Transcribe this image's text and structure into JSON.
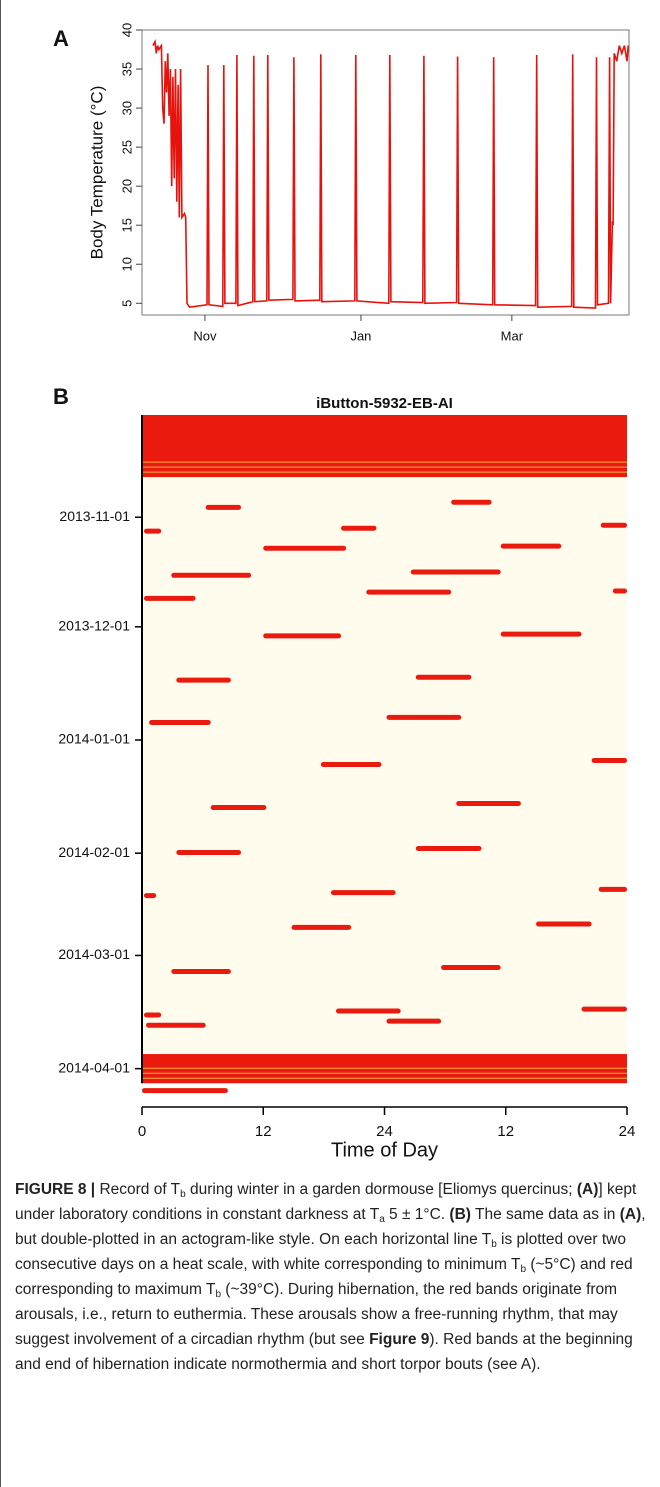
{
  "panel_labels": [
    "A",
    "B"
  ],
  "chart_data": [
    {
      "type": "line",
      "ylabel": "Body Temperature (°C)",
      "color": "#e8120c",
      "xlim": [
        6.4,
        196.8
      ],
      "ylim": [
        3.5,
        40
      ],
      "xticks": [
        {
          "value": 31,
          "label": "Nov"
        },
        {
          "value": 92,
          "label": "Jan"
        },
        {
          "value": 151,
          "label": "Mar"
        }
      ],
      "yticks": [
        5,
        10,
        15,
        20,
        25,
        30,
        35,
        40
      ],
      "x": [
        10.7,
        11.5,
        12,
        12.5,
        13,
        14,
        14.5,
        15,
        15.5,
        16,
        16.5,
        17,
        17.5,
        18,
        18.5,
        19,
        19.5,
        20,
        20.5,
        21,
        21.5,
        22,
        23,
        23.5,
        24,
        25,
        31.8,
        32.2,
        32.6,
        38,
        38.4,
        38.8,
        43.1,
        43.5,
        43.9,
        49.7,
        50.1,
        50.5,
        55.2,
        55.6,
        56,
        65.4,
        65.8,
        66.2,
        75.9,
        76.3,
        76.7,
        89.6,
        90,
        90.4,
        102.9,
        103.3,
        103.7,
        116.2,
        116.6,
        117,
        129.4,
        129.8,
        130.2,
        143.5,
        143.9,
        144.3,
        160.3,
        160.7,
        161.1,
        174.4,
        174.8,
        175.2,
        183.7,
        184.1,
        184.5,
        188.8,
        189.2,
        189.6,
        190.3,
        190.6,
        191,
        192,
        193,
        194,
        195,
        196,
        196.5
      ],
      "values": [
        38,
        38.5,
        37,
        38,
        37.5,
        38,
        30,
        28,
        36,
        32,
        37,
        29,
        35,
        20,
        34,
        21,
        35,
        18,
        33,
        16,
        35,
        16,
        16.5,
        16,
        5,
        4.5,
        4.8,
        35.5,
        4.8,
        4.6,
        35.5,
        5,
        5,
        36.8,
        4.7,
        5.2,
        36.7,
        5.2,
        5.3,
        36.8,
        5.4,
        5.5,
        36.5,
        5.3,
        5.4,
        36.9,
        5.2,
        5.3,
        36.8,
        5.3,
        5,
        36.8,
        5.2,
        5.1,
        36.7,
        5,
        5.1,
        36.6,
        5,
        4.8,
        36.5,
        4.8,
        4.7,
        36.8,
        4.5,
        4.6,
        36.9,
        4.5,
        4.4,
        36.5,
        4.8,
        5,
        36.5,
        5,
        15.5,
        15,
        37,
        36,
        38,
        37,
        38,
        36,
        38
      ]
    },
    {
      "type": "actogram",
      "title": "iButton-5932-EB-AI",
      "xlabel": "Time of Day",
      "color": "#ea1a0e",
      "background": "#fffcee",
      "xlim": [
        0,
        48
      ],
      "ylim": [
        3,
        192.5
      ],
      "xticks": [
        0,
        12,
        24,
        {
          "value": 36,
          "label": "12"
        },
        {
          "value": 48,
          "label": "24"
        }
      ],
      "yticks": [
        {
          "value": 31,
          "label": "2013-11-01"
        },
        {
          "value": 61,
          "label": "2013-12-01"
        },
        {
          "value": 92,
          "label": "2014-01-01"
        },
        {
          "value": 123,
          "label": "2014-02-01"
        },
        {
          "value": 151,
          "label": "2014-03-01"
        },
        {
          "value": 182,
          "label": "2014-04-01"
        }
      ],
      "blocks": [
        {
          "day_from": 3,
          "day_to": 20,
          "start": 0,
          "end": 48
        },
        {
          "day_from": 178,
          "day_to": 186,
          "start": 0,
          "end": 48
        }
      ],
      "bouts": [
        {
          "day": 28.3,
          "start": 6.3,
          "end": 9.8
        },
        {
          "day": 34.8,
          "start": 0.2,
          "end": 1.9
        },
        {
          "day": 26.9,
          "start": 30.6,
          "end": 34.6
        },
        {
          "day": 34,
          "start": 19.7,
          "end": 23.2
        },
        {
          "day": 33.2,
          "start": 45.4,
          "end": 48
        },
        {
          "day": 39.5,
          "start": 12,
          "end": 20.2
        },
        {
          "day": 38.9,
          "start": 35.5,
          "end": 41.5
        },
        {
          "day": 46.9,
          "start": 2.9,
          "end": 10.8
        },
        {
          "day": 46,
          "start": 26.6,
          "end": 35.5
        },
        {
          "day": 53.2,
          "start": 0.2,
          "end": 5.3
        },
        {
          "day": 51.5,
          "start": 22.2,
          "end": 30.6
        },
        {
          "day": 51.2,
          "start": 46.6,
          "end": 48
        },
        {
          "day": 63.5,
          "start": 12,
          "end": 19.7
        },
        {
          "day": 63,
          "start": 35.5,
          "end": 43.5
        },
        {
          "day": 75.6,
          "start": 3.4,
          "end": 8.8
        },
        {
          "day": 74.8,
          "start": 27.1,
          "end": 32.6
        },
        {
          "day": 87.2,
          "start": 0.7,
          "end": 6.8
        },
        {
          "day": 85.8,
          "start": 24.2,
          "end": 31.6
        },
        {
          "day": 98.7,
          "start": 17.7,
          "end": 23.7
        },
        {
          "day": 97.6,
          "start": 44.5,
          "end": 48
        },
        {
          "day": 110.5,
          "start": 6.8,
          "end": 12.3
        },
        {
          "day": 109.4,
          "start": 31.1,
          "end": 37.5
        },
        {
          "day": 122.8,
          "start": 3.4,
          "end": 9.8
        },
        {
          "day": 121.7,
          "start": 27.1,
          "end": 33.6
        },
        {
          "day": 134.6,
          "start": 0.2,
          "end": 1.4
        },
        {
          "day": 133.8,
          "start": 18.7,
          "end": 25.1
        },
        {
          "day": 132.9,
          "start": 45.2,
          "end": 48
        },
        {
          "day": 143.3,
          "start": 14.8,
          "end": 20.7
        },
        {
          "day": 142.4,
          "start": 39,
          "end": 44.5
        },
        {
          "day": 155.4,
          "start": 2.9,
          "end": 8.8
        },
        {
          "day": 154.3,
          "start": 29.6,
          "end": 35.5
        },
        {
          "day": 167.3,
          "start": 0.2,
          "end": 1.9
        },
        {
          "day": 166.2,
          "start": 19.2,
          "end": 25.6
        },
        {
          "day": 165.7,
          "start": 43.5,
          "end": 48
        },
        {
          "day": 170.1,
          "start": 0.4,
          "end": 6.3
        },
        {
          "day": 169,
          "start": 24.2,
          "end": 29.6
        },
        {
          "day": 188,
          "start": 0,
          "end": 8.5
        }
      ]
    }
  ],
  "caption": [
    "FIGURE 8 |",
    " Record of T",
    "b",
    " during winter in a garden dormouse [Eliomys quercinus; ",
    "(A)",
    "] kept under laboratory conditions in constant darkness at T",
    "a",
    " 5 ± 1°C. ",
    "(B)",
    " The same data as in ",
    "(A)",
    ", but double-plotted in an actogram-like style. On each horizontal line T",
    "b",
    " is plotted over two consecutive days on a heat scale, with white corresponding to minimum T",
    "b",
    " (~5°C) and red corresponding to maximum T",
    "b",
    " (~39°C). During hibernation, the red bands originate from arousals, i.e., return to euthermia. These arousals show a free-running rhythm, that may suggest involvement of a circadian rhythm (but see ",
    "Figure 9",
    "). Red bands at the beginning and end of hibernation indicate normothermia and short torpor bouts (see A)."
  ]
}
